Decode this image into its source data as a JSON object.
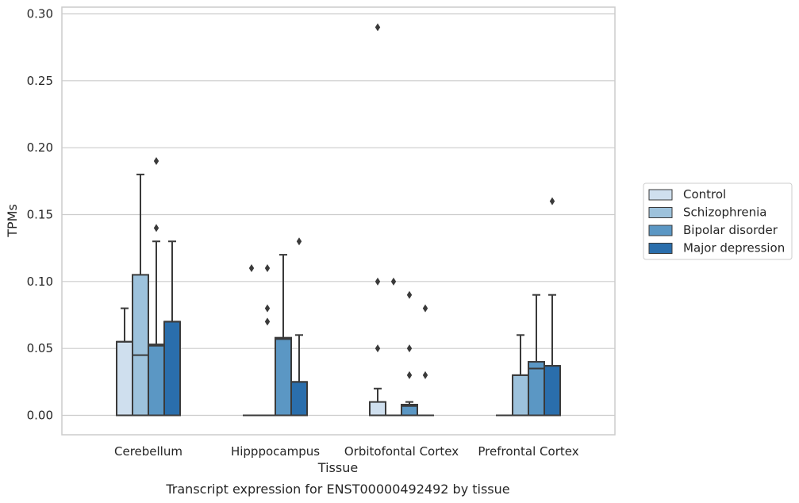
{
  "chart_data": {
    "type": "box",
    "xlabel": "Tissue",
    "ylabel": "TPMs",
    "caption": "Transcript expression for ENST00000492492 by tissue",
    "ylim": [
      -0.014,
      0.303
    ],
    "yticks": [
      "0.00",
      "0.05",
      "0.10",
      "0.15",
      "0.20",
      "0.25",
      "0.30"
    ],
    "ytick_values": [
      0,
      0.05,
      0.1,
      0.15,
      0.2,
      0.25,
      0.3
    ],
    "grid": "horizontal",
    "legend_position": "right",
    "categories": [
      "Cerebellum",
      "Hipppocampus",
      "Orbitofontal Cortex",
      "Prefrontal Cortex"
    ],
    "series": [
      {
        "name": "Control",
        "color": "#cfdfee",
        "boxes": [
          {
            "q1": 0,
            "median": 0.055,
            "q3": 0.055,
            "whisker_low": 0,
            "whisker_high": 0.08,
            "outliers": []
          },
          {
            "q1": 0,
            "median": 0,
            "q3": 0,
            "whisker_low": 0,
            "whisker_high": 0,
            "outliers": [
              0.11
            ]
          },
          {
            "q1": 0,
            "median": 0,
            "q3": 0.01,
            "whisker_low": 0,
            "whisker_high": 0.02,
            "outliers": [
              0.05,
              0.1,
              0.29
            ]
          },
          {
            "q1": 0,
            "median": 0,
            "q3": 0,
            "whisker_low": 0,
            "whisker_high": 0,
            "outliers": []
          }
        ]
      },
      {
        "name": "Schizophrenia",
        "color": "#9dc2dc",
        "boxes": [
          {
            "q1": 0,
            "median": 0.045,
            "q3": 0.105,
            "whisker_low": 0,
            "whisker_high": 0.18,
            "outliers": []
          },
          {
            "q1": 0,
            "median": 0,
            "q3": 0,
            "whisker_low": 0,
            "whisker_high": 0,
            "outliers": [
              0.07,
              0.08,
              0.11
            ]
          },
          {
            "q1": 0,
            "median": 0,
            "q3": 0,
            "whisker_low": 0,
            "whisker_high": 0,
            "outliers": [
              0.1
            ]
          },
          {
            "q1": 0,
            "median": 0.03,
            "q3": 0.03,
            "whisker_low": 0,
            "whisker_high": 0.06,
            "outliers": []
          }
        ]
      },
      {
        "name": "Bipolar disorder",
        "color": "#5b97c4",
        "boxes": [
          {
            "q1": 0,
            "median": 0.052,
            "q3": 0.053,
            "whisker_low": 0,
            "whisker_high": 0.13,
            "outliers": [
              0.14,
              0.19
            ]
          },
          {
            "q1": 0,
            "median": 0.057,
            "q3": 0.058,
            "whisker_low": 0,
            "whisker_high": 0.12,
            "outliers": []
          },
          {
            "q1": 0,
            "median": 0.007,
            "q3": 0.008,
            "whisker_low": 0,
            "whisker_high": 0.01,
            "outliers": [
              0.03,
              0.05,
              0.09
            ]
          },
          {
            "q1": 0,
            "median": 0.035,
            "q3": 0.04,
            "whisker_low": 0,
            "whisker_high": 0.09,
            "outliers": []
          }
        ]
      },
      {
        "name": "Major depression",
        "color": "#2a6eac",
        "boxes": [
          {
            "q1": 0,
            "median": 0.07,
            "q3": 0.07,
            "whisker_low": 0,
            "whisker_high": 0.13,
            "outliers": []
          },
          {
            "q1": 0,
            "median": 0.025,
            "q3": 0.025,
            "whisker_low": 0,
            "whisker_high": 0.06,
            "outliers": [
              0.13
            ]
          },
          {
            "q1": 0,
            "median": 0,
            "q3": 0,
            "whisker_low": 0,
            "whisker_high": 0,
            "outliers": [
              0.03,
              0.08
            ]
          },
          {
            "q1": 0,
            "median": 0.037,
            "q3": 0.037,
            "whisker_low": 0,
            "whisker_high": 0.09,
            "outliers": [
              0.16
            ]
          }
        ]
      }
    ]
  }
}
